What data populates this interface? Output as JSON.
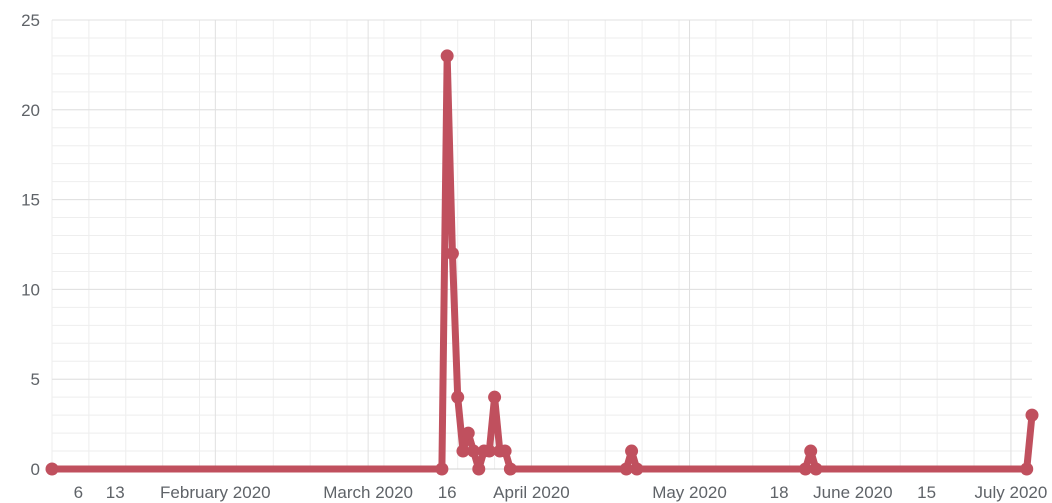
{
  "chart_data": {
    "type": "line",
    "title": "",
    "xlabel": "",
    "ylabel": "",
    "xlim": [
      "2020-01-01",
      "2020-07-05"
    ],
    "ylim": [
      0,
      25
    ],
    "yticks": [
      0,
      5,
      10,
      15,
      20,
      25
    ],
    "xticks": [
      {
        "date": "2020-01-06",
        "label": "6"
      },
      {
        "date": "2020-01-13",
        "label": "13"
      },
      {
        "date": "2020-02-01",
        "label": "February 2020"
      },
      {
        "date": "2020-03-01",
        "label": "March 2020"
      },
      {
        "date": "2020-03-16",
        "label": "16"
      },
      {
        "date": "2020-04-01",
        "label": "April 2020"
      },
      {
        "date": "2020-05-01",
        "label": "May 2020"
      },
      {
        "date": "2020-05-18",
        "label": "18"
      },
      {
        "date": "2020-06-01",
        "label": "June 2020"
      },
      {
        "date": "2020-06-15",
        "label": "15"
      },
      {
        "date": "2020-07-01",
        "label": "July 2020"
      }
    ],
    "grid": true,
    "legend": "none",
    "series": [
      {
        "color": "#c0505e",
        "points": [
          {
            "x": "2020-01-01",
            "y": 0
          },
          {
            "x": "2020-03-15",
            "y": 0
          },
          {
            "x": "2020-03-16",
            "y": 23
          },
          {
            "x": "2020-03-17",
            "y": 12
          },
          {
            "x": "2020-03-18",
            "y": 4
          },
          {
            "x": "2020-03-19",
            "y": 1
          },
          {
            "x": "2020-03-20",
            "y": 2
          },
          {
            "x": "2020-03-21",
            "y": 1
          },
          {
            "x": "2020-03-22",
            "y": 0
          },
          {
            "x": "2020-03-23",
            "y": 1
          },
          {
            "x": "2020-03-24",
            "y": 1
          },
          {
            "x": "2020-03-25",
            "y": 4
          },
          {
            "x": "2020-03-26",
            "y": 1
          },
          {
            "x": "2020-03-27",
            "y": 1
          },
          {
            "x": "2020-03-28",
            "y": 0
          },
          {
            "x": "2020-04-19",
            "y": 0
          },
          {
            "x": "2020-04-20",
            "y": 1
          },
          {
            "x": "2020-04-21",
            "y": 0
          },
          {
            "x": "2020-05-23",
            "y": 0
          },
          {
            "x": "2020-05-24",
            "y": 1
          },
          {
            "x": "2020-05-25",
            "y": 0
          },
          {
            "x": "2020-07-04",
            "y": 0
          },
          {
            "x": "2020-07-05",
            "y": 3
          }
        ]
      }
    ]
  }
}
